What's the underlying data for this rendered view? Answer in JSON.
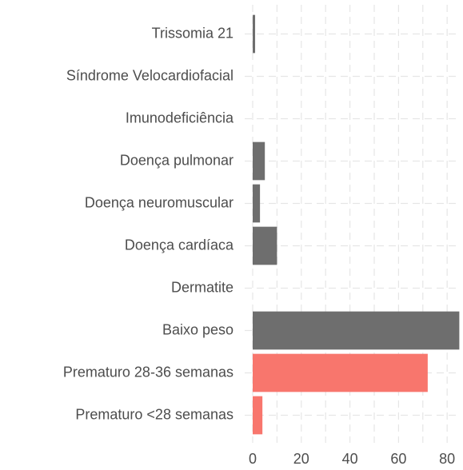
{
  "chart_data": {
    "type": "barh",
    "categories": [
      "Trissomia 21",
      "Síndrome Velocardiofacial",
      "Imunodeficiência",
      "Doença pulmonar",
      "Doença neuromuscular",
      "Doença cardíaca",
      "Dermatite",
      "Baixo peso",
      "Prematuro 28-36 semanas",
      "Prematuro <28 semanas"
    ],
    "values": [
      1,
      0,
      0,
      5,
      3,
      10,
      0,
      85,
      72,
      4
    ],
    "colors": [
      "#6e6e6e",
      "#6e6e6e",
      "#6e6e6e",
      "#6e6e6e",
      "#6e6e6e",
      "#6e6e6e",
      "#6e6e6e",
      "#6e6e6e",
      "#f8766d",
      "#f8766d"
    ],
    "xlim": [
      0,
      85.2
    ],
    "xticks": [
      0,
      20,
      40,
      60,
      80
    ],
    "minor_xticks": [
      10,
      30,
      50,
      70
    ],
    "grid": true
  }
}
